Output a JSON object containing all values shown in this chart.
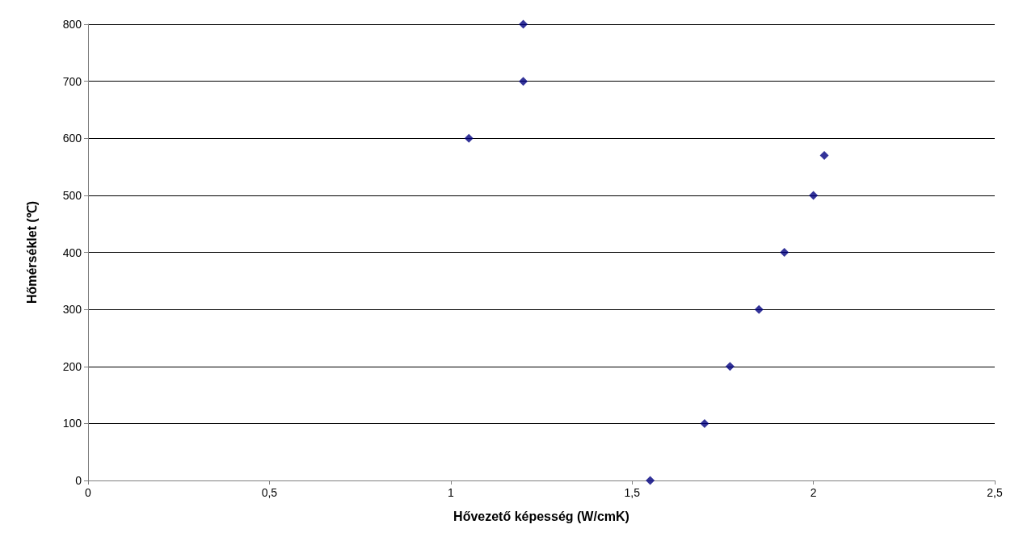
{
  "chart_data": {
    "type": "scatter",
    "xlabel": "Hővezető képesség (W/cmK)",
    "ylabel": "Hőmérséklet (℃)",
    "x": [
      1.55,
      1.7,
      1.77,
      1.85,
      1.92,
      2.0,
      2.03,
      1.05,
      1.2,
      1.2
    ],
    "series": [
      {
        "color": "#000080",
        "values": [
          0,
          100,
          200,
          300,
          400,
          500,
          570,
          600,
          700,
          800
        ]
      }
    ],
    "xlim": [
      0,
      2.5
    ],
    "xticks": [
      0,
      {
        "value": 0.5,
        "label": "0,5"
      },
      1,
      {
        "value": 1.5,
        "label": "1,5"
      },
      2,
      {
        "value": 2.5,
        "label": "2,5"
      }
    ],
    "ylim": [
      0,
      800
    ],
    "yticks": [
      0,
      100,
      200,
      300,
      400,
      500,
      600,
      700,
      800
    ],
    "grid": "y",
    "marker": "diamond"
  }
}
